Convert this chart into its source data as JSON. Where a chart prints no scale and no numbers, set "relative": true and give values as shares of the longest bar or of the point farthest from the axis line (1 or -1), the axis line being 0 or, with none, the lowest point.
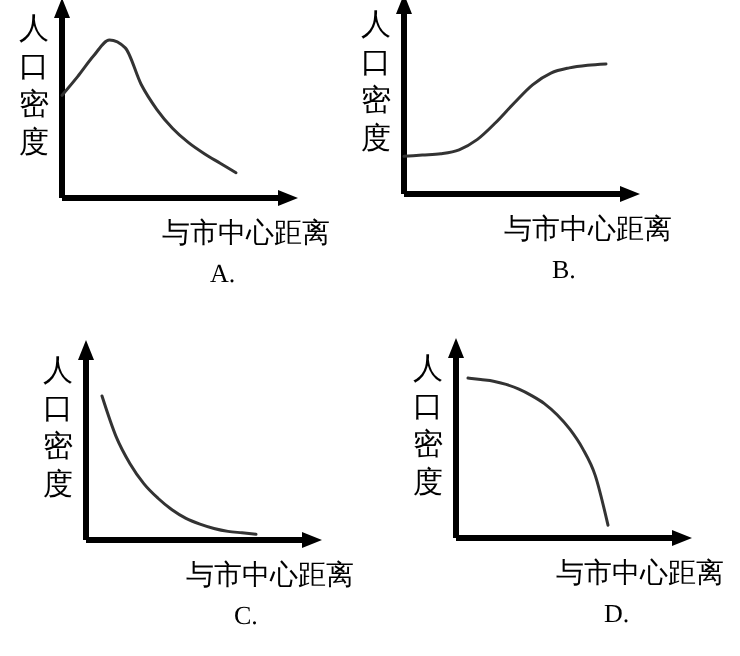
{
  "chart_data": [
    {
      "type": "line",
      "relative": true,
      "color": "#333333",
      "ylabel": "人口密度",
      "xlabel": "与市中心距离",
      "annotations": [
        "A."
      ],
      "categories": [
        null,
        null,
        null,
        null,
        null,
        null,
        null,
        null,
        null,
        null,
        null,
        null
      ],
      "values": [
        0.65,
        0.77,
        0.9,
        1,
        0.95,
        0.72,
        0.56,
        0.44,
        0.35,
        0.28,
        0.22,
        0.16
      ]
    },
    {
      "type": "line",
      "relative": true,
      "color": "#333333",
      "ylabel": "人口密度",
      "xlabel": "与市中心距离",
      "annotations": [
        "B."
      ],
      "categories": [
        null,
        null,
        null,
        null,
        null,
        null,
        null,
        null,
        null,
        null,
        null,
        null
      ],
      "values": [
        0.29,
        0.3,
        0.31,
        0.34,
        0.42,
        0.55,
        0.7,
        0.84,
        0.93,
        0.97,
        0.99,
        1
      ]
    },
    {
      "type": "line",
      "relative": true,
      "color": "#333333",
      "ylabel": "人口密度",
      "xlabel": "与市中心距离",
      "annotations": [
        "C."
      ],
      "categories": [
        null,
        null,
        null,
        null,
        null,
        null,
        null,
        null,
        null,
        null,
        null,
        null
      ],
      "values": [
        1,
        0.72,
        0.53,
        0.39,
        0.29,
        0.21,
        0.15,
        0.11,
        0.08,
        0.06,
        0.05,
        0.04
      ]
    },
    {
      "type": "line",
      "relative": true,
      "color": "#333333",
      "ylabel": "人口密度",
      "xlabel": "与市中心距离",
      "annotations": [
        "D."
      ],
      "categories": [
        null,
        null,
        null,
        null,
        null,
        null,
        null,
        null,
        null,
        null,
        null,
        null
      ],
      "values": [
        1,
        0.99,
        0.98,
        0.96,
        0.93,
        0.89,
        0.84,
        0.77,
        0.68,
        0.56,
        0.39,
        0.08
      ]
    }
  ]
}
